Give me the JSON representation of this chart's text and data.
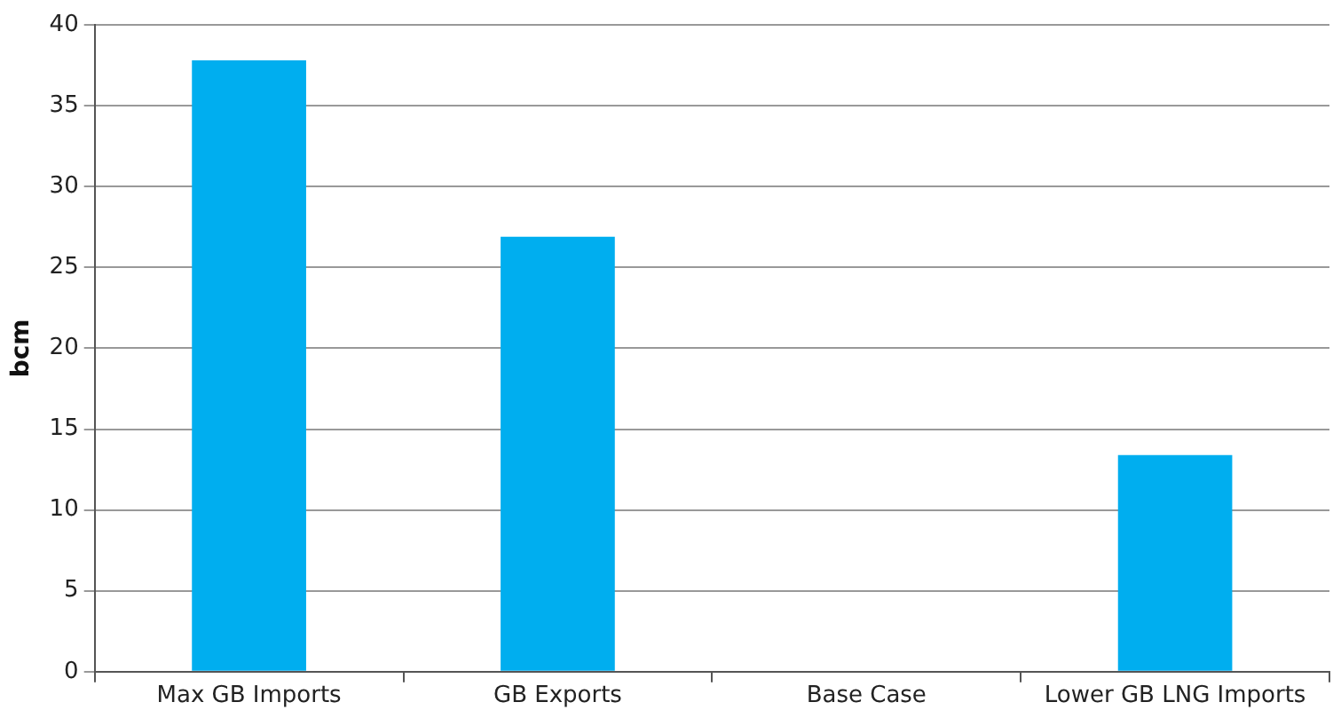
{
  "chart_data": {
    "type": "bar",
    "ylabel": "bcm",
    "categories": [
      "Max GB Imports",
      "GB Exports",
      "Base Case",
      "Lower GB LNG Imports"
    ],
    "values": [
      37.8,
      26.9,
      0,
      13.4
    ],
    "color": "#00aeef",
    "ylim": [
      0,
      40
    ],
    "yticks": [
      0,
      5,
      10,
      15,
      20,
      25,
      30,
      35,
      40
    ],
    "grid": "y",
    "legend": false
  }
}
